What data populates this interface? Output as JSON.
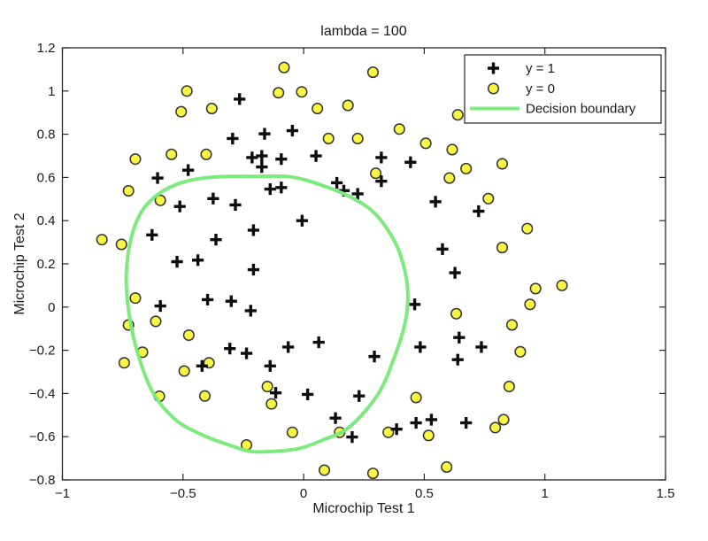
{
  "figure": {
    "background": "#ffffff",
    "frame_color": "#262626"
  },
  "chart_data": {
    "type": "scatter",
    "title": "lambda = 100",
    "xlabel": "Microchip Test 1",
    "ylabel": "Microchip Test 2",
    "xlim": [
      -1,
      1.5
    ],
    "ylim": [
      -0.8,
      1.2
    ],
    "grid": false,
    "x_ticks": [
      {
        "v": -1,
        "label": "−1"
      },
      {
        "v": -0.5,
        "label": "−0.5"
      },
      {
        "v": 0,
        "label": "0"
      },
      {
        "v": 0.5,
        "label": "0.5"
      },
      {
        "v": 1,
        "label": "1"
      },
      {
        "v": 1.5,
        "label": "1.5"
      }
    ],
    "y_ticks": [
      {
        "v": -0.8,
        "label": "−0.8"
      },
      {
        "v": -0.6,
        "label": "−0.6"
      },
      {
        "v": -0.4,
        "label": "−0.4"
      },
      {
        "v": -0.2,
        "label": "−0.2"
      },
      {
        "v": 0,
        "label": "0"
      },
      {
        "v": 0.2,
        "label": "0.2"
      },
      {
        "v": 0.4,
        "label": "0.4"
      },
      {
        "v": 0.6,
        "label": "0.6"
      },
      {
        "v": 0.8,
        "label": "0.8"
      },
      {
        "v": 1,
        "label": "1"
      },
      {
        "v": 1.2,
        "label": "1.2"
      }
    ],
    "legend": {
      "position": "top-right",
      "items": [
        {
          "label": "y = 1",
          "marker": "plus"
        },
        {
          "label": "y = 0",
          "marker": "circle"
        },
        {
          "label": "Decision boundary",
          "marker": "line"
        }
      ]
    },
    "series": [
      {
        "name": "y = 1",
        "marker": "plus",
        "color": "#0d0d0d",
        "points": [
          [
            0.051267,
            0.69956
          ],
          [
            -0.092742,
            0.68494
          ],
          [
            -0.21371,
            0.69225
          ],
          [
            -0.375,
            0.50219
          ],
          [
            -0.51325,
            0.46564
          ],
          [
            -0.52477,
            0.2098
          ],
          [
            -0.39804,
            0.034357
          ],
          [
            -0.30588,
            -0.19225
          ],
          [
            0.016705,
            -0.40424
          ],
          [
            0.13191,
            -0.51389
          ],
          [
            0.38537,
            -0.56506
          ],
          [
            0.52938,
            -0.5212
          ],
          [
            0.63882,
            -0.24342
          ],
          [
            0.73675,
            -0.18494
          ],
          [
            0.54666,
            0.48757
          ],
          [
            0.322,
            0.5826
          ],
          [
            0.16647,
            0.53874
          ],
          [
            -0.046659,
            0.81652
          ],
          [
            -0.17339,
            0.69956
          ],
          [
            -0.47869,
            0.63377
          ],
          [
            -0.60541,
            0.59722
          ],
          [
            -0.62846,
            0.33406
          ],
          [
            -0.59389,
            0.005117
          ],
          [
            -0.42108,
            -0.27266
          ],
          [
            -0.11578,
            -0.39693
          ],
          [
            0.20104,
            -0.60161
          ],
          [
            0.46601,
            -0.53582
          ],
          [
            0.67339,
            -0.53582
          ],
          [
            -0.13882,
            0.54605
          ],
          [
            -0.29435,
            0.77997
          ],
          [
            -0.26555,
            0.96272
          ],
          [
            -0.16187,
            0.8019
          ],
          [
            -0.17339,
            0.64839
          ],
          [
            -0.28283,
            0.47295
          ],
          [
            -0.36348,
            0.31213
          ],
          [
            -0.30012,
            0.027047
          ],
          [
            -0.23675,
            -0.21418
          ],
          [
            -0.06394,
            -0.18494
          ],
          [
            0.062788,
            -0.16301
          ],
          [
            0.22984,
            -0.41155
          ],
          [
            0.2932,
            -0.2288
          ],
          [
            0.48329,
            -0.18494
          ],
          [
            0.64459,
            -0.14108
          ],
          [
            0.46025,
            0.012427
          ],
          [
            0.6273,
            0.15863
          ],
          [
            0.57546,
            0.26827
          ],
          [
            0.72523,
            0.44371
          ],
          [
            0.22408,
            0.52412
          ],
          [
            0.44297,
            0.67032
          ],
          [
            0.322,
            0.69225
          ],
          [
            0.13767,
            0.57529
          ],
          [
            -0.0063364,
            0.39985
          ],
          [
            -0.092742,
            0.55336
          ],
          [
            -0.20795,
            0.35599
          ],
          [
            -0.20795,
            0.17325
          ],
          [
            -0.43836,
            0.21711
          ],
          [
            -0.21947,
            -0.016813
          ],
          [
            -0.13882,
            -0.27266
          ]
        ]
      },
      {
        "name": "y = 0",
        "marker": "circle",
        "fill": "#faf542",
        "edge": "#333333",
        "points": [
          [
            0.18376,
            0.93348
          ],
          [
            0.22408,
            0.77997
          ],
          [
            0.29896,
            0.61915
          ],
          [
            0.50634,
            0.75804
          ],
          [
            0.61578,
            0.7288
          ],
          [
            0.60426,
            0.59722
          ],
          [
            0.76555,
            0.50219
          ],
          [
            0.92684,
            0.3633
          ],
          [
            0.82316,
            0.27558
          ],
          [
            0.96141,
            0.085526
          ],
          [
            0.93836,
            0.012427
          ],
          [
            0.86348,
            -0.082602
          ],
          [
            0.89804,
            -0.20687
          ],
          [
            0.85196,
            -0.36769
          ],
          [
            0.82892,
            -0.5212
          ],
          [
            0.79435,
            -0.55775
          ],
          [
            0.59274,
            -0.7405
          ],
          [
            0.51786,
            -0.5943
          ],
          [
            0.46601,
            -0.41886
          ],
          [
            0.35081,
            -0.57968
          ],
          [
            0.28744,
            -0.76974
          ],
          [
            0.085829,
            -0.75512
          ],
          [
            0.14919,
            -0.57968
          ],
          [
            -0.13306,
            -0.4481
          ],
          [
            -0.40956,
            -0.41155
          ],
          [
            -0.39228,
            -0.25804
          ],
          [
            -0.74366,
            -0.25804
          ],
          [
            -0.69758,
            0.041667
          ],
          [
            -0.75518,
            0.2902
          ],
          [
            -0.69758,
            0.68494
          ],
          [
            -0.4038,
            0.70687
          ],
          [
            -0.38076,
            0.91886
          ],
          [
            -0.50749,
            0.90424
          ],
          [
            -0.54781,
            0.70687
          ],
          [
            0.10311,
            0.77997
          ],
          [
            0.057028,
            0.91886
          ],
          [
            -0.10426,
            0.99196
          ],
          [
            -0.081221,
            1.1089
          ],
          [
            0.28744,
            1.087
          ],
          [
            0.39689,
            0.82383
          ],
          [
            0.63882,
            0.88962
          ],
          [
            0.82316,
            0.66301
          ],
          [
            0.67339,
            0.64108
          ],
          [
            1.0709,
            0.10015
          ],
          [
            -0.046659,
            -0.57968
          ],
          [
            -0.23675,
            -0.63816
          ],
          [
            -0.15035,
            -0.36769
          ],
          [
            0.63265,
            -0.030612
          ],
          [
            -0.008,
            0.996
          ],
          [
            -0.484,
            1.0
          ],
          [
            -0.726,
            0.538
          ],
          [
            -0.594,
            0.494
          ],
          [
            -0.836,
            0.312
          ],
          [
            -0.726,
            -0.083
          ],
          [
            -0.613,
            -0.066
          ],
          [
            -0.476,
            -0.13
          ],
          [
            -0.668,
            -0.209
          ],
          [
            -0.495,
            -0.296
          ],
          [
            -0.598,
            -0.413
          ]
        ]
      }
    ],
    "boundary": {
      "name": "Decision boundary",
      "color": "#7dea7d",
      "closed": true,
      "points": [
        [
          -0.2,
          0.605
        ],
        [
          -0.05,
          0.602
        ],
        [
          0.09,
          0.558
        ],
        [
          0.21,
          0.5
        ],
        [
          0.3,
          0.428
        ],
        [
          0.38,
          0.298
        ],
        [
          0.42,
          0.165
        ],
        [
          0.432,
          0.045
        ],
        [
          0.42,
          -0.075
        ],
        [
          0.38,
          -0.22
        ],
        [
          0.31,
          -0.4
        ],
        [
          0.19,
          -0.555
        ],
        [
          0.08,
          -0.615
        ],
        [
          -0.02,
          -0.655
        ],
        [
          -0.13,
          -0.668
        ],
        [
          -0.22,
          -0.668
        ],
        [
          -0.31,
          -0.638
        ],
        [
          -0.42,
          -0.592
        ],
        [
          -0.53,
          -0.522
        ],
        [
          -0.625,
          -0.395
        ],
        [
          -0.69,
          -0.205
        ],
        [
          -0.725,
          -0.02
        ],
        [
          -0.735,
          0.15
        ],
        [
          -0.715,
          0.32
        ],
        [
          -0.67,
          0.445
        ],
        [
          -0.6,
          0.525
        ],
        [
          -0.5,
          0.578
        ],
        [
          -0.37,
          0.602
        ]
      ]
    }
  }
}
